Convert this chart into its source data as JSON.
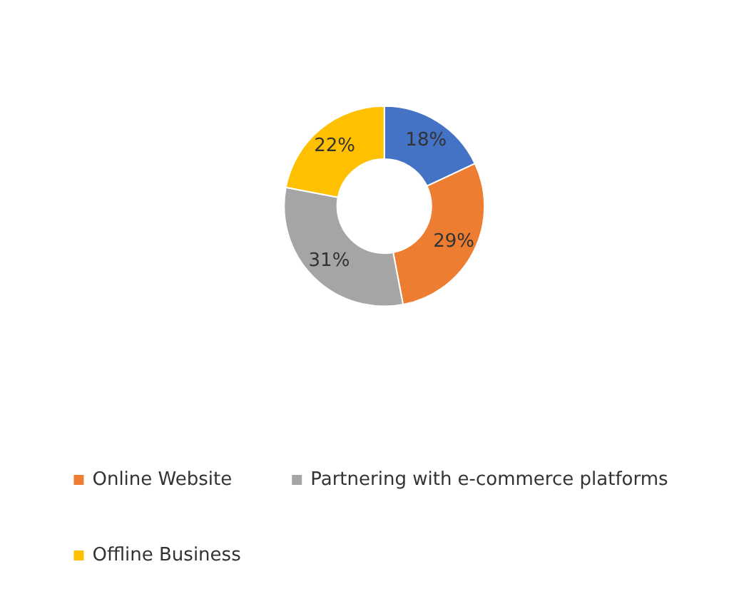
{
  "chart_data": {
    "type": "donut",
    "categories": [
      null,
      "Online Website",
      "Partnering with e-commerce platforms",
      "Offline Business"
    ],
    "values": [
      18,
      29,
      31,
      22
    ],
    "value_labels": [
      "18%",
      "29%",
      "31%",
      "22%"
    ],
    "colors": [
      "#4472c4",
      "#ed7d31",
      "#a5a5a5",
      "#ffc000"
    ],
    "legend": "bottom"
  }
}
